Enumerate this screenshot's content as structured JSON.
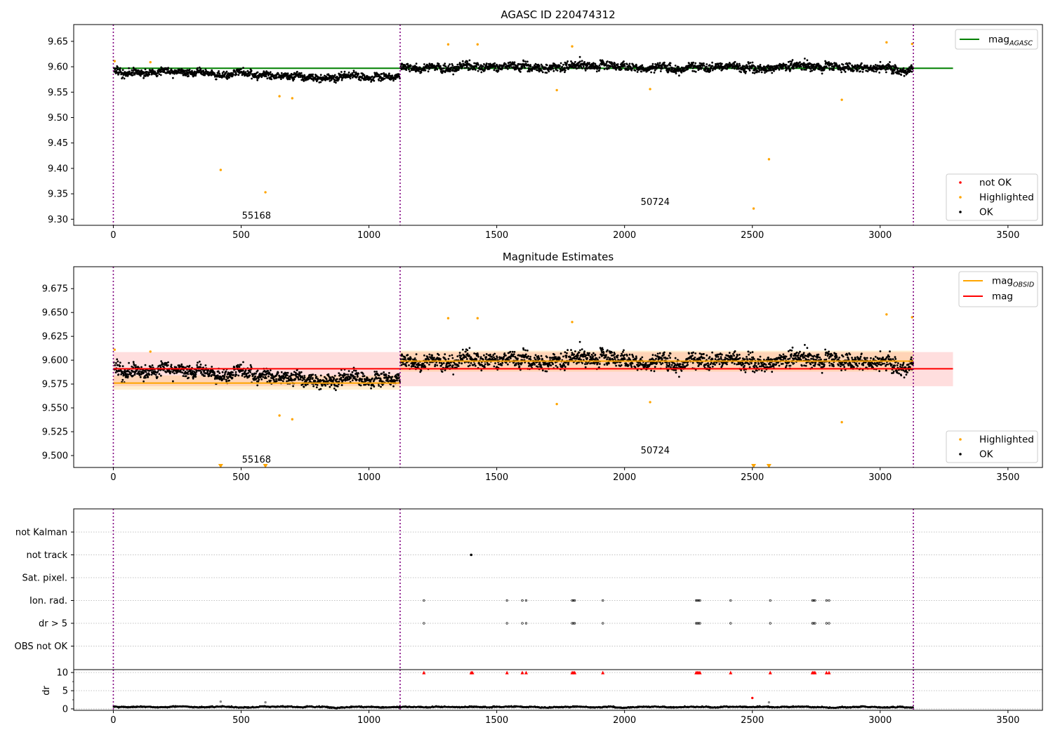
{
  "chart_data": [
    {
      "type": "scatter",
      "title": "AGASC ID 220474312",
      "xlim": [
        -155,
        3635
      ],
      "ylim": [
        9.288,
        9.683
      ],
      "xticks": [
        0,
        500,
        1000,
        1500,
        2000,
        2500,
        3000,
        3500
      ],
      "yticks": [
        9.3,
        9.35,
        9.4,
        9.45,
        9.5,
        9.55,
        9.6,
        9.65
      ],
      "obsid_boundaries": [
        0,
        1122,
        3130
      ],
      "obsid_labels": [
        {
          "text": "55168",
          "x": 560,
          "y": 9.308
        },
        {
          "text": "50724",
          "x": 2120,
          "y": 9.335
        }
      ],
      "lines": [
        {
          "name": "mag_AGASC",
          "color": "#008000",
          "x": [
            0,
            3285
          ],
          "y": [
            9.597,
            9.597
          ]
        }
      ],
      "ok_segments": [
        {
          "x0": 0,
          "x1": 1122,
          "start": 9.593,
          "end": 9.577,
          "noise": 0.012
        },
        {
          "x0": 1122,
          "x1": 3130,
          "start": 9.601,
          "end": 9.599,
          "noise": 0.014
        }
      ],
      "series": [
        {
          "name": "not OK",
          "color": "#ff0000",
          "x": [],
          "y": []
        },
        {
          "name": "Highlighted",
          "color": "#ffa500",
          "x": [
            5,
            145,
            420,
            595,
            650,
            700,
            1310,
            1425,
            1735,
            1795,
            2100,
            2505,
            2565,
            2850,
            3025,
            3125
          ],
          "y": [
            9.611,
            9.609,
            9.397,
            9.353,
            9.542,
            9.538,
            9.644,
            9.644,
            9.554,
            9.64,
            9.556,
            9.321,
            9.418,
            9.535,
            9.648,
            9.645
          ]
        },
        {
          "name": "OK",
          "color": "#000000",
          "x": [],
          "y": []
        }
      ],
      "legends": [
        {
          "position": "top-right",
          "entries": [
            {
              "label": "mag",
              "sub": "AGASC",
              "color": "#008000",
              "kind": "line"
            }
          ]
        },
        {
          "position": "bottom-right",
          "entries": [
            {
              "label": "not OK",
              "color": "#ff0000",
              "kind": "dot"
            },
            {
              "label": "Highlighted",
              "color": "#ffa500",
              "kind": "dot"
            },
            {
              "label": "OK",
              "color": "#000000",
              "kind": "dot"
            }
          ]
        }
      ]
    },
    {
      "type": "scatter",
      "title": "Magnitude Estimates",
      "xlim": [
        -155,
        3635
      ],
      "ylim": [
        9.4875,
        9.698
      ],
      "xticks": [
        0,
        500,
        1000,
        1500,
        2000,
        2500,
        3000,
        3500
      ],
      "yticks": [
        9.5,
        9.525,
        9.55,
        9.575,
        9.6,
        9.625,
        9.65,
        9.675
      ],
      "obsid_boundaries": [
        0,
        1122,
        3130
      ],
      "obsid_labels": [
        {
          "text": "55168",
          "x": 560,
          "y": 9.4965
        },
        {
          "text": "50724",
          "x": 2120,
          "y": 9.506
        }
      ],
      "bands": [
        {
          "color": "#ff0000",
          "opacity": 0.13,
          "x": [
            0,
            3285
          ],
          "y": [
            9.5727,
            9.6085
          ]
        },
        {
          "color": "#ffa500",
          "opacity": 0.18,
          "x": [
            0,
            1122
          ],
          "y": [
            9.569,
            9.584
          ]
        },
        {
          "color": "#ffa500",
          "opacity": 0.18,
          "x": [
            1122,
            3130
          ],
          "y": [
            9.588,
            9.61
          ]
        }
      ],
      "lines": [
        {
          "name": "mag_OBSID",
          "color": "#ffa500",
          "x": [
            0,
            1122
          ],
          "y": [
            9.576,
            9.576
          ]
        },
        {
          "name": "mag_OBSID",
          "color": "#ffa500",
          "x": [
            1122,
            3130
          ],
          "y": [
            9.599,
            9.599
          ]
        },
        {
          "name": "mag",
          "color": "#ff0000",
          "x": [
            0,
            3285
          ],
          "y": [
            9.591,
            9.591
          ]
        }
      ],
      "ok_segments": [
        {
          "x0": 0,
          "x1": 1122,
          "start": 9.593,
          "end": 9.577,
          "noise": 0.012
        },
        {
          "x0": 1122,
          "x1": 3130,
          "start": 9.601,
          "end": 9.599,
          "noise": 0.014
        }
      ],
      "series": [
        {
          "name": "Highlighted",
          "color": "#ffa500",
          "x": [
            5,
            145,
            650,
            700,
            1310,
            1425,
            1735,
            1795,
            2100,
            2850,
            3025,
            3125
          ],
          "y": [
            9.611,
            9.609,
            9.542,
            9.538,
            9.644,
            9.644,
            9.554,
            9.64,
            9.556,
            9.535,
            9.648,
            9.645
          ]
        },
        {
          "name": "Highlighted (below range)",
          "color": "#ffa500",
          "marker": "triangle-down",
          "x": [
            420,
            595,
            2505,
            2565
          ],
          "y": [
            9.489,
            9.489,
            9.489,
            9.489
          ]
        },
        {
          "name": "OK",
          "color": "#000000",
          "x": [],
          "y": []
        }
      ],
      "legends": [
        {
          "position": "top-right",
          "entries": [
            {
              "label": "mag",
              "sub": "OBSID",
              "color": "#ffa500",
              "kind": "line"
            },
            {
              "label": "mag",
              "sub": "",
              "color": "#ff0000",
              "kind": "line"
            }
          ]
        },
        {
          "position": "bottom-right",
          "entries": [
            {
              "label": "Highlighted",
              "color": "#ffa500",
              "kind": "dot"
            },
            {
              "label": "OK",
              "color": "#000000",
              "kind": "dot"
            }
          ]
        }
      ]
    },
    {
      "type": "scatter",
      "title": "",
      "xlim": [
        -155,
        3635
      ],
      "categories": [
        "not Kalman",
        "not track",
        "Sat. pixel.",
        "Ion. rad.",
        "dr > 5",
        "OBS not OK"
      ],
      "obsid_boundaries": [
        0,
        1122,
        3130
      ],
      "flag_points": {
        "not track": [
          1400
        ],
        "Ion. rad.": [
          1215,
          1540,
          1600,
          1615,
          1795,
          1800,
          1805,
          1915,
          2280,
          2285,
          2290,
          2295,
          2415,
          2570,
          2735,
          2740,
          2745,
          2790,
          2800
        ],
        "dr > 5": [
          1215,
          1540,
          1600,
          1615,
          1795,
          1800,
          1805,
          1915,
          2280,
          2285,
          2290,
          2295,
          2415,
          2570,
          2735,
          2740,
          2745,
          2790,
          2800
        ]
      }
    },
    {
      "type": "scatter",
      "title": "",
      "ylabel": "dr",
      "xlim": [
        -155,
        3635
      ],
      "ylim": [
        -0.4,
        10.8
      ],
      "xticks": [
        0,
        500,
        1000,
        1500,
        2000,
        2500,
        3000,
        3500
      ],
      "yticks": [
        0,
        5,
        10
      ],
      "obsid_boundaries": [
        0,
        1122,
        3130
      ],
      "dr_baseline": {
        "x0": 0,
        "x1": 3130,
        "mean": 0.6,
        "noise": 0.35
      },
      "series": [
        {
          "name": "dr > 10 (clipped)",
          "color": "#ff0000",
          "marker": "triangle-up",
          "x": [
            1215,
            1400,
            1405,
            1540,
            1600,
            1615,
            1795,
            1800,
            1805,
            1915,
            2280,
            2285,
            2290,
            2295,
            2415,
            2570,
            2735,
            2740,
            2745,
            2790,
            2800
          ],
          "y": [
            10,
            10,
            10,
            10,
            10,
            10,
            10,
            10,
            10,
            10,
            10,
            10,
            10,
            10,
            10,
            10,
            10,
            10,
            10,
            10,
            10
          ]
        },
        {
          "name": "dr outliers",
          "color": "#ff0000",
          "x": [
            2500
          ],
          "y": [
            3.0
          ]
        },
        {
          "name": "dr outliers gray",
          "color": "#888888",
          "x": [
            420,
            595,
            2565
          ],
          "y": [
            2.0,
            1.8,
            1.8
          ]
        }
      ]
    }
  ]
}
